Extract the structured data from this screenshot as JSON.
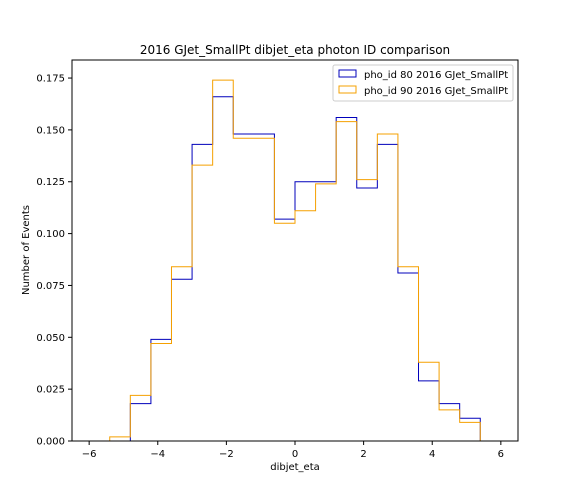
{
  "chart_data": {
    "type": "step-histogram",
    "title": "2016 GJet_SmallPt dibjet_eta photon ID comparison",
    "xlabel": "dibjet_eta",
    "ylabel": "Number of Events",
    "xlim": [
      -6.5,
      6.5
    ],
    "ylim": [
      0,
      0.1837
    ],
    "xticks": [
      -6,
      -4,
      -2,
      0,
      2,
      4,
      6
    ],
    "xtick_labels": [
      "−6",
      "−4",
      "−2",
      "0",
      "2",
      "4",
      "6"
    ],
    "yticks": [
      0,
      0.025,
      0.05,
      0.075,
      0.1,
      0.125,
      0.15,
      0.175
    ],
    "ytick_labels": [
      "0.000",
      "0.025",
      "0.050",
      "0.075",
      "0.100",
      "0.125",
      "0.150",
      "0.175"
    ],
    "grid": false,
    "legend_position": "top-right",
    "bin_edges": [
      -5.4,
      -4.8,
      -4.2,
      -3.6,
      -3.0,
      -2.4,
      -1.8,
      -1.2,
      -0.6,
      0.0,
      0.6,
      1.2,
      1.8,
      2.4,
      3.0,
      3.6,
      4.2,
      4.8,
      5.4
    ],
    "series": [
      {
        "name": "pho_id 80 2016 GJet_SmallPt",
        "color": "#0000bb",
        "values": [
          0.0,
          0.018,
          0.049,
          0.078,
          0.143,
          0.166,
          0.148,
          0.148,
          0.107,
          0.125,
          0.125,
          0.156,
          0.122,
          0.143,
          0.081,
          0.029,
          0.018,
          0.011
        ]
      },
      {
        "name": "pho_id 90 2016 GJet_SmallPt",
        "color": "#f5a000",
        "values": [
          0.002,
          0.022,
          0.047,
          0.084,
          0.133,
          0.174,
          0.146,
          0.146,
          0.105,
          0.111,
          0.124,
          0.154,
          0.126,
          0.148,
          0.084,
          0.038,
          0.015,
          0.009
        ]
      }
    ]
  }
}
